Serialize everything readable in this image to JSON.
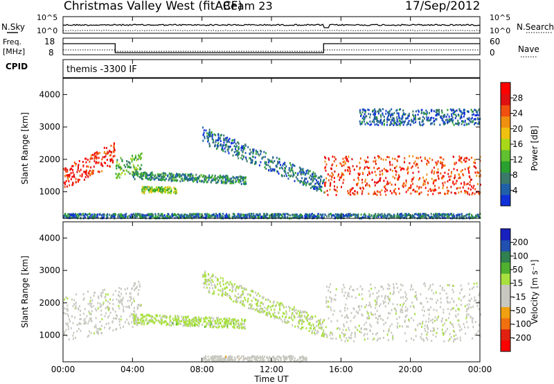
{
  "header": {
    "title": "Christmas Valley West (fitACF)",
    "beam": "Beam 23",
    "date": "17/Sep/2012"
  },
  "nsky_panel": {
    "left_label": "N.Sky",
    "right_label": "N.Search",
    "left_ticks": [
      "10^5",
      "10^0"
    ],
    "right_ticks": [
      "10^5",
      "10^0"
    ]
  },
  "freq_panel": {
    "left_label_1": "Freq.",
    "left_label_2": "[MHz]",
    "right_label": "Nave",
    "left_ticks": [
      "18",
      "8"
    ],
    "right_ticks": [
      "60",
      "0"
    ]
  },
  "cpid_panel": {
    "label": "CPID",
    "text": "themis -3300 IF"
  },
  "x_axis": {
    "label": "Time UT",
    "ticks": [
      "00:00",
      "04:00",
      "08:00",
      "12:00",
      "16:00",
      "20:00",
      "00:00"
    ]
  },
  "colors": {
    "power_scale": [
      "#1030d8",
      "#2060a8",
      "#3a7a6a",
      "#2aa030",
      "#60c030",
      "#a8d818",
      "#f0c010",
      "#f09010",
      "#f05010",
      "#e01010",
      "#ff0000"
    ],
    "velocity_scale": [
      "#ff0000",
      "#e02010",
      "#f07010",
      "#f0a010",
      "#c8c8c0",
      "#c8c8c0",
      "#a8e040",
      "#50b030",
      "#308050",
      "#2050b0",
      "#1820c0"
    ]
  },
  "chart_data": [
    {
      "type": "heatmap",
      "name": "power",
      "ylabel": "Slant Range [km]",
      "yticks": [
        1000,
        2000,
        3000,
        4000
      ],
      "ylim": [
        180,
        4500
      ],
      "xlim": [
        0,
        24
      ],
      "colorbar": {
        "label": "Power [dB]",
        "ticks": [
          "28",
          "24",
          "20",
          "16",
          "12",
          "8",
          "4"
        ],
        "range": [
          0,
          32
        ]
      },
      "bands": [
        {
          "t": [
            0,
            3
          ],
          "range_center": [
            1400,
            2200
          ],
          "width_km": 350,
          "power_db": 27
        },
        {
          "t": [
            3,
            4.5
          ],
          "range_center": [
            1700,
            1900
          ],
          "width_km": 300,
          "power_db": 12
        },
        {
          "t": [
            4,
            10.5
          ],
          "range_center": [
            1500,
            1350
          ],
          "width_km": 120,
          "power_db": 8
        },
        {
          "t": [
            4.5,
            6.5
          ],
          "range_center": [
            1050,
            1050
          ],
          "width_km": 100,
          "power_db": 14
        },
        {
          "t": [
            8,
            15
          ],
          "range_center": [
            2750,
            1200
          ],
          "width_km": 260,
          "power_db": 6
        },
        {
          "t": [
            15,
            24
          ],
          "range_center": [
            1500,
            1500
          ],
          "width_km": 600,
          "power_db": 26
        },
        {
          "t": [
            17,
            24
          ],
          "range_center": [
            3300,
            3300
          ],
          "width_km": 250,
          "power_db": 5
        },
        {
          "t": [
            0,
            24
          ],
          "range_center": [
            230,
            230
          ],
          "width_km": 90,
          "power_db": 6
        }
      ]
    },
    {
      "type": "heatmap",
      "name": "velocity",
      "ylabel": "Slant Range [km]",
      "yticks": [
        1000,
        2000,
        3000,
        4000
      ],
      "ylim": [
        180,
        4500
      ],
      "xlim": [
        0,
        24
      ],
      "colorbar": {
        "label": "Velocity [m s⁻¹]",
        "ticks": [
          "200",
          "100",
          "50",
          "15",
          "-15",
          "-50",
          "-100",
          "-200"
        ],
        "range": [
          -250,
          250
        ]
      },
      "bands": [
        {
          "t": [
            0,
            4.5
          ],
          "range_center": [
            1500,
            2000
          ],
          "width_km": 700,
          "velocity": 0
        },
        {
          "t": [
            4,
            10.5
          ],
          "range_center": [
            1500,
            1350
          ],
          "width_km": 150,
          "velocity": 40
        },
        {
          "t": [
            8,
            15
          ],
          "range_center": [
            2700,
            1200
          ],
          "width_km": 300,
          "velocity": 30
        },
        {
          "t": [
            15,
            24
          ],
          "range_center": [
            1700,
            1700
          ],
          "width_km": 900,
          "velocity": 0
        },
        {
          "t": [
            8,
            14
          ],
          "range_center": [
            240,
            240
          ],
          "width_km": 120,
          "velocity": -40
        }
      ]
    }
  ]
}
